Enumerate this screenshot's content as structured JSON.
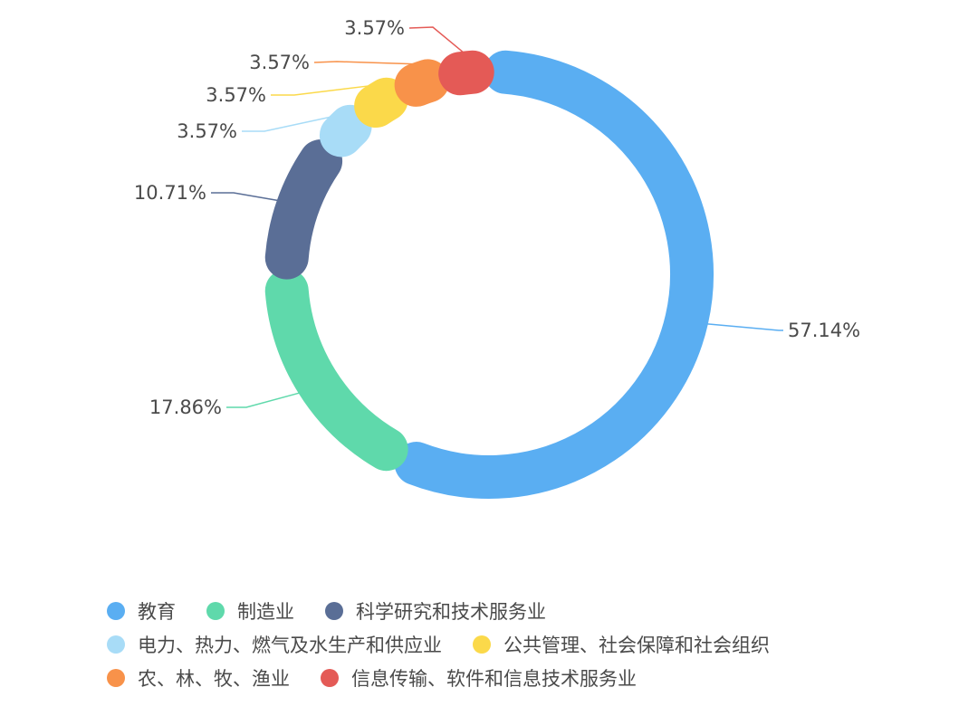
{
  "chart_data": {
    "type": "pie",
    "subtype": "donut",
    "title": "",
    "categories": [
      "教育",
      "制造业",
      "科学研究和技术服务业",
      "电力、热力、燃气及水生产和供应业",
      "公共管理、社会保障和社会组织",
      "农、林、牧、渔业",
      "信息传输、软件和信息技术服务业"
    ],
    "values": [
      57.14,
      17.86,
      10.71,
      3.57,
      3.57,
      3.57,
      3.57
    ],
    "labels": [
      "57.14%",
      "17.86%",
      "10.71%",
      "3.57%",
      "3.57%",
      "3.57%",
      "3.57%"
    ],
    "colors": [
      "#5aaef2",
      "#5fd9ab",
      "#5a6e96",
      "#a8dcf7",
      "#fbd94a",
      "#f8924a",
      "#e45a56"
    ],
    "legend_position": "bottom",
    "start_angle": "top, clockwise"
  },
  "legend": {
    "rows": [
      [
        {
          "label": "教育",
          "color": "#5aaef2"
        },
        {
          "label": "制造业",
          "color": "#5fd9ab"
        },
        {
          "label": "科学研究和技术服务业",
          "color": "#5a6e96"
        }
      ],
      [
        {
          "label": "电力、热力、燃气及水生产和供应业",
          "color": "#a8dcf7"
        },
        {
          "label": "公共管理、社会保障和社会组织",
          "color": "#fbd94a"
        }
      ],
      [
        {
          "label": "农、林、牧、渔业",
          "color": "#f8924a"
        },
        {
          "label": "信息传输、软件和信息技术服务业",
          "color": "#e45a56"
        }
      ]
    ]
  }
}
